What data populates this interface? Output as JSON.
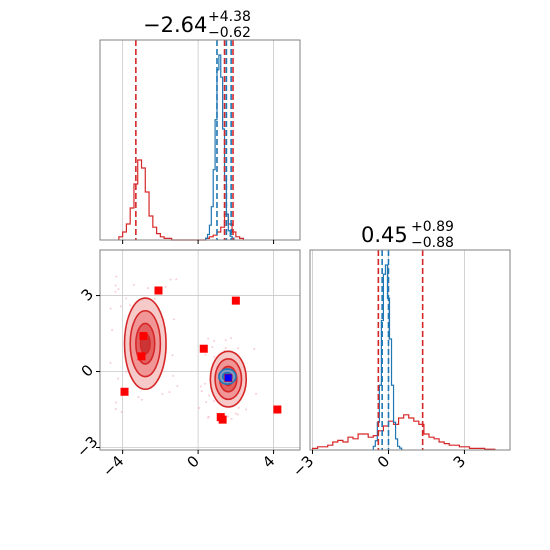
{
  "chart_data": {
    "type": "corner",
    "params": [
      {
        "title_value": "−2.64",
        "title_plus": "+4.38",
        "title_minus": "−0.62",
        "ticks": [
          -4,
          0,
          4
        ],
        "tick_labels": [
          "−4",
          "0",
          "4"
        ],
        "range": [
          -5.2,
          5.4
        ]
      },
      {
        "title_value": "0.45",
        "title_plus": "+0.89",
        "title_minus": "−0.88",
        "ticks": [
          -3,
          0,
          3
        ],
        "tick_labels": [
          "−3",
          "0",
          "3"
        ],
        "range": [
          -3.1,
          4.8
        ]
      }
    ],
    "y_ticks": [
      -3,
      0,
      3
    ],
    "y_tick_labels": [
      "−3",
      "0",
      "3"
    ],
    "y_range": [
      -3.1,
      4.8
    ],
    "colors": {
      "blue": "#1f77b4",
      "red": "#d62728",
      "marker_red": "#ff0000",
      "marker_blue": "#0000ff"
    },
    "hist1_red": {
      "edges_start": -4.2,
      "bin_width": 0.2,
      "counts": [
        0.02,
        0.05,
        0.1,
        0.2,
        0.35,
        0.5,
        0.45,
        0.3,
        0.15,
        0.08,
        0.04,
        0.02,
        0.01,
        0.01,
        0,
        0,
        0,
        0,
        0,
        0,
        0,
        0,
        0,
        0.01,
        0.02,
        0.03,
        0.05,
        0.08,
        0.16,
        0.1,
        0.05,
        0.02,
        0.01
      ]
    },
    "hist1_blue": {
      "edges_start": 0.4,
      "bin_width": 0.1,
      "counts": [
        0.01,
        0.03,
        0.08,
        0.18,
        0.38,
        0.65,
        0.92,
        1.0,
        0.88,
        0.6,
        0.32,
        0.14,
        0.05,
        0.02,
        0.01
      ]
    },
    "hist1_lines": {
      "red": [
        -3.3,
        1.4,
        1.85
      ],
      "blue": [
        1.0,
        1.5,
        1.75
      ]
    },
    "hist2_red": {
      "edges_start": -3.0,
      "bin_width": 0.2,
      "counts": [
        0.01,
        0.02,
        0.02,
        0.03,
        0.05,
        0.06,
        0.05,
        0.08,
        0.07,
        0.1,
        0.1,
        0.08,
        0.09,
        0.12,
        0.15,
        0.18,
        0.16,
        0.2,
        0.22,
        0.2,
        0.18,
        0.16,
        0.1,
        0.08,
        0.07,
        0.05,
        0.04,
        0.03,
        0.03,
        0.02,
        0.02,
        0.01,
        0.01,
        0.01,
        0.005,
        0.005
      ]
    },
    "hist2_blue": {
      "edges_start": -0.6,
      "bin_width": 0.08,
      "counts": [
        0.02,
        0.05,
        0.15,
        0.35,
        0.7,
        0.95,
        1.0,
        0.82,
        0.6,
        0.35,
        0.15,
        0.06,
        0.02,
        0.01
      ]
    },
    "hist2_lines": {
      "red": [
        -0.4,
        1.35
      ],
      "blue": [
        -0.25,
        0.0
      ]
    },
    "scatter_markers": [
      {
        "x": -2.1,
        "y": 3.2
      },
      {
        "x": 2.0,
        "y": 2.8
      },
      {
        "x": -2.9,
        "y": 1.4
      },
      {
        "x": 0.3,
        "y": 0.9
      },
      {
        "x": -3.0,
        "y": 0.6
      },
      {
        "x": -3.9,
        "y": -0.8
      },
      {
        "x": 1.2,
        "y": -1.8
      },
      {
        "x": 1.3,
        "y": -1.9
      },
      {
        "x": 4.2,
        "y": -1.5
      },
      {
        "x": 1.6,
        "y": -0.25
      }
    ],
    "blue_marker": {
      "x": 1.6,
      "y": -0.25
    },
    "red_blob_1": {
      "cx": -2.8,
      "cy": 1.1,
      "rx": [
        1.1,
        0.8,
        0.5,
        0.25
      ],
      "ry": [
        1.8,
        1.3,
        0.8,
        0.4
      ]
    },
    "red_blob_2": {
      "cx": 1.6,
      "cy": -0.3,
      "rx": [
        0.95,
        0.7,
        0.45,
        0.22
      ],
      "ry": [
        1.1,
        0.8,
        0.5,
        0.25
      ]
    },
    "blue_blob": {
      "cx": 1.55,
      "cy": -0.2,
      "rx": [
        0.45,
        0.25
      ],
      "ry": [
        0.3,
        0.16
      ]
    }
  }
}
